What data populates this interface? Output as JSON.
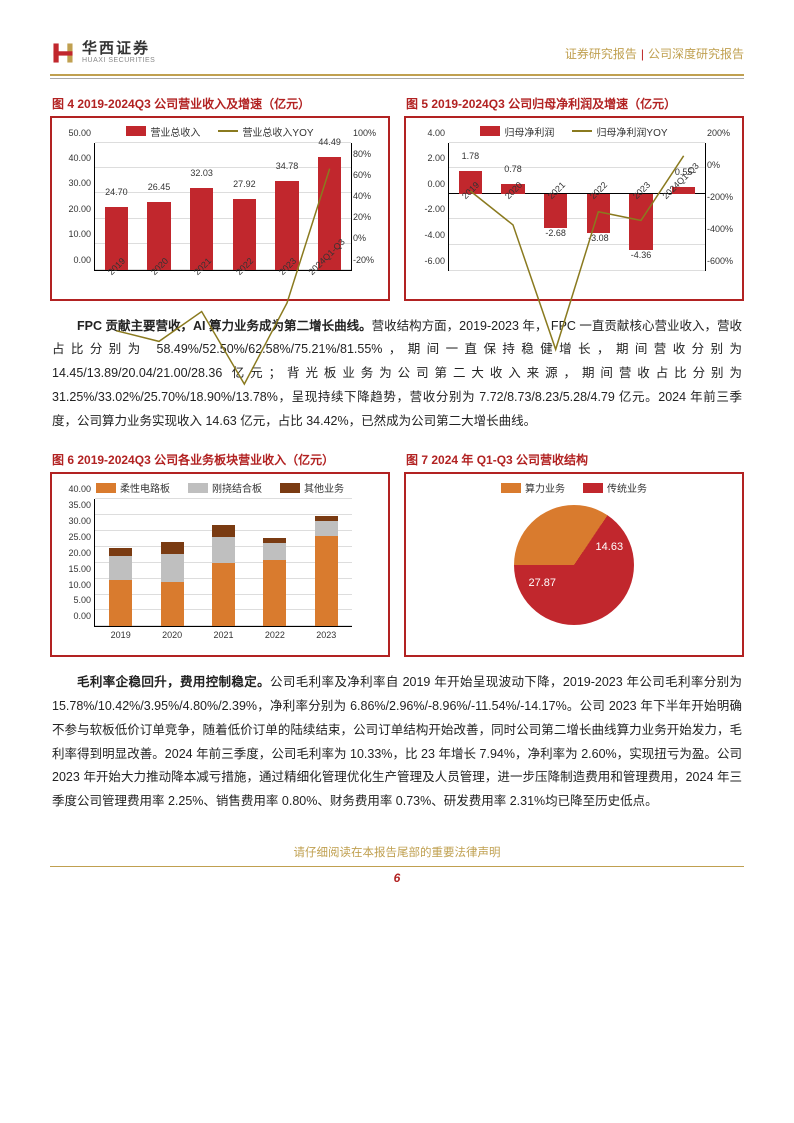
{
  "header": {
    "logo_cn": "华西证券",
    "logo_en": "HUAXI SECURITIES",
    "right_a": "证券研究报告",
    "right_b": "公司深度研究报告"
  },
  "colors": {
    "brand_red": "#b22222",
    "brand_gold": "#c0a050",
    "bar_red": "#c1272d",
    "line_olive": "#8a7a1f",
    "bar_orange": "#d97b2e",
    "bar_grey": "#bfbfbf",
    "bar_brown": "#7a3b12",
    "pie_red": "#c1272d",
    "pie_orange": "#d97b2e"
  },
  "fig4": {
    "title": "图 4 2019-2024Q3 公司营业收入及增速（亿元）",
    "legend_bar": "营业总收入",
    "legend_line": "营业总收入YOY",
    "cats": [
      "2019",
      "2020",
      "2021",
      "2022",
      "2023",
      "2024Q1-Q3"
    ],
    "values": [
      24.7,
      26.45,
      32.03,
      27.92,
      34.78,
      44.49
    ],
    "yoy_pct": [
      12,
      7,
      21,
      -13,
      25,
      88
    ],
    "y_left": {
      "min": 0,
      "max": 50,
      "step": 10,
      "labels": [
        "0.00",
        "10.00",
        "20.00",
        "30.00",
        "40.00",
        "50.00"
      ]
    },
    "y_right": {
      "min": -20,
      "max": 100,
      "step": 20,
      "labels": [
        "-20%",
        "0%",
        "20%",
        "40%",
        "60%",
        "80%",
        "100%"
      ]
    }
  },
  "fig5": {
    "title": "图 5 2019-2024Q3 公司归母净利润及增速（亿元）",
    "legend_bar": "归母净利润",
    "legend_line": "归母净利润YOY",
    "cats": [
      "2019",
      "2020",
      "2021",
      "2022",
      "2023",
      "2024Q1-Q3"
    ],
    "values": [
      1.78,
      0.78,
      -2.68,
      -3.08,
      -4.36,
      0.55
    ],
    "yoy_pct": [
      50,
      -56,
      -445,
      -15,
      -42,
      160
    ],
    "y_left": {
      "min": -6,
      "max": 4,
      "step": 2,
      "labels": [
        "-6.00",
        "-4.00",
        "-2.00",
        "0.00",
        "2.00",
        "4.00"
      ]
    },
    "y_right": {
      "min": -600,
      "max": 200,
      "step": 200,
      "labels": [
        "-600%",
        "-400%",
        "-200%",
        "0%",
        "200%"
      ]
    }
  },
  "para1": {
    "lead": "FPC 贡献主要营收，AI 算力业务成为第二增长曲线。",
    "rest": "营收结构方面，2019-2023 年， FPC 一直贡献核心营业收入，营收占比分别为 58.49%/52.50%/62.58%/75.21%/81.55%，期间一直保持稳健增长，期间营收分别为 14.45/13.89/20.04/21.00/28.36 亿元；背光板业务为公司第二大收入来源，期间营收占比分别为 31.25%/33.02%/25.70%/18.90%/13.78%，呈现持续下降趋势，营收分别为 7.72/8.73/8.23/5.28/4.79 亿元。2024 年前三季度，公司算力业务实现收入 14.63 亿元，占比 34.42%，已然成为公司第二大增长曲线。"
  },
  "fig6": {
    "title": "图 6 2019-2024Q3 公司各业务板块营业收入（亿元）",
    "legend": [
      "柔性电路板",
      "刚挠结合板",
      "其他业务"
    ],
    "cats": [
      "2019",
      "2020",
      "2021",
      "2022",
      "2023"
    ],
    "series": {
      "flex": [
        14.45,
        13.89,
        20.04,
        21.0,
        28.36
      ],
      "rigid": [
        7.72,
        8.73,
        8.23,
        5.28,
        4.79
      ],
      "other": [
        2.53,
        3.83,
        3.76,
        1.64,
        1.63
      ]
    },
    "y": {
      "min": 0,
      "max": 40,
      "step": 5,
      "labels": [
        "0.00",
        "5.00",
        "10.00",
        "15.00",
        "20.00",
        "25.00",
        "30.00",
        "35.00",
        "40.00"
      ]
    }
  },
  "fig7": {
    "title": "图 7 2024 年 Q1-Q3 公司营收结构",
    "legend": [
      "算力业务",
      "传统业务"
    ],
    "slices": [
      {
        "label": "14.63",
        "value": 14.63,
        "color": "#d97b2e"
      },
      {
        "label": "27.87",
        "value": 27.87,
        "color": "#c1272d"
      }
    ]
  },
  "para2": {
    "lead": "毛利率企稳回升，费用控制稳定。",
    "rest": "公司毛利率及净利率自 2019 年开始呈现波动下降，2019-2023 年公司毛利率分别为 15.78%/10.42%/3.95%/4.80%/2.39%，净利率分别为 6.86%/2.96%/-8.96%/-11.54%/-14.17%。公司 2023 年下半年开始明确不参与软板低价订单竞争，随着低价订单的陆续结束，公司订单结构开始改善，同时公司第二增长曲线算力业务开始发力，毛利率得到明显改善。2024 年前三季度，公司毛利率为 10.33%，比 23 年增长 7.94%，净利率为 2.60%，实现扭亏为盈。公司 2023 年开始大力推动降本减亏措施，通过精细化管理优化生产管理及人员管理，进一步压降制造费用和管理费用，2024 年三季度公司管理费用率 2.25%、销售费用率 0.80%、财务费用率 0.73%、研发费用率 2.31%均已降至历史低点。"
  },
  "footer": {
    "note": "请仔细阅读在本报告尾部的重要法律声明",
    "page": "6"
  }
}
